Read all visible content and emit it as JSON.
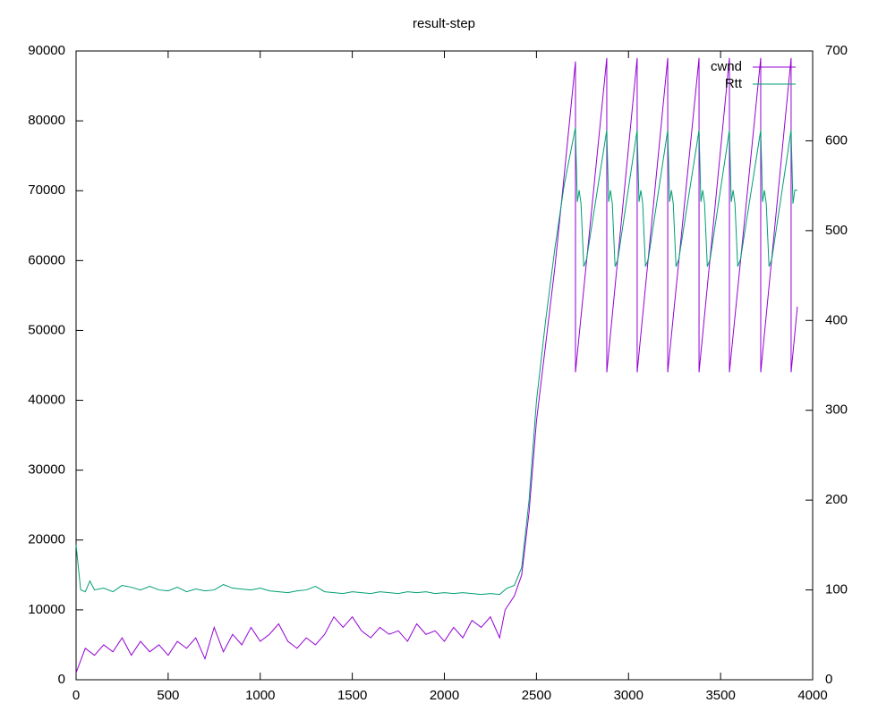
{
  "chart_data": {
    "type": "line",
    "title": "result-step",
    "xlim": [
      0,
      4000
    ],
    "xticks": [
      0,
      500,
      1000,
      1500,
      2000,
      2500,
      3000,
      3500,
      4000
    ],
    "ylim": [
      0,
      90000
    ],
    "yticks": [
      0,
      10000,
      20000,
      30000,
      40000,
      50000,
      60000,
      70000,
      80000,
      90000
    ],
    "y2lim": [
      0,
      700
    ],
    "y2ticks": [
      0,
      100,
      200,
      300,
      400,
      500,
      600,
      700
    ],
    "grid": false,
    "legend": "top-right",
    "series": [
      {
        "name": "cwnd",
        "color": "#9400d3",
        "x": [
          0,
          50,
          100,
          150,
          200,
          250,
          300,
          350,
          400,
          450,
          500,
          550,
          600,
          650,
          700,
          750,
          800,
          850,
          900,
          950,
          1000,
          1050,
          1100,
          1150,
          1200,
          1250,
          1300,
          1350,
          1400,
          1450,
          1500,
          1550,
          1600,
          1650,
          1700,
          1750,
          1800,
          1850,
          1900,
          1950,
          2000,
          2050,
          2100,
          2150,
          2200,
          2250,
          2300,
          2330,
          2380,
          2420,
          2460,
          2500,
          2550,
          2600,
          2650,
          2712,
          2712,
          2882,
          2882,
          3047,
          3047,
          3213,
          3213,
          3383,
          3383,
          3548,
          3548,
          3718,
          3718,
          3883,
          3883,
          3917
        ],
        "values": [
          1000,
          4500,
          3500,
          5000,
          4000,
          6000,
          3500,
          5500,
          4000,
          5000,
          3500,
          5500,
          4500,
          6000,
          3000,
          7500,
          4000,
          6500,
          5000,
          7500,
          5500,
          6500,
          8000,
          5500,
          4500,
          6000,
          5000,
          6500,
          9000,
          7500,
          9000,
          7000,
          6000,
          7500,
          6500,
          7000,
          5500,
          8000,
          6500,
          7000,
          5500,
          7500,
          6000,
          8500,
          7500,
          9000,
          6000,
          10000,
          12000,
          15000,
          24000,
          37000,
          48000,
          59000,
          72000,
          88500,
          44000,
          89000,
          44000,
          89000,
          44000,
          89000,
          44000,
          89000,
          44000,
          89000,
          44000,
          89000,
          44000,
          89000,
          44000,
          53400
        ]
      },
      {
        "name": "Rtt",
        "color": "#009e73",
        "axis": "y2",
        "x": [
          0,
          25,
          50,
          75,
          100,
          150,
          200,
          250,
          300,
          350,
          400,
          450,
          500,
          550,
          600,
          650,
          700,
          750,
          800,
          850,
          900,
          950,
          1000,
          1050,
          1100,
          1150,
          1200,
          1250,
          1300,
          1350,
          1400,
          1450,
          1500,
          1550,
          1600,
          1650,
          1700,
          1750,
          1800,
          1850,
          1900,
          1950,
          2000,
          2050,
          2100,
          2150,
          2200,
          2250,
          2300,
          2340,
          2380,
          2420,
          2460,
          2500,
          2550,
          2600,
          2650,
          2712,
          2715,
          2722,
          2732,
          2742,
          2757,
          2772,
          2882,
          2885,
          2892,
          2902,
          2912,
          2927,
          2942,
          3047,
          3050,
          3057,
          3067,
          3077,
          3092,
          3107,
          3213,
          3216,
          3223,
          3233,
          3243,
          3258,
          3273,
          3383,
          3386,
          3393,
          3403,
          3413,
          3428,
          3443,
          3548,
          3551,
          3558,
          3568,
          3578,
          3593,
          3608,
          3718,
          3721,
          3728,
          3738,
          3748,
          3763,
          3778,
          3883,
          3886,
          3893,
          3903,
          3917
        ],
        "values": [
          150,
          100,
          98,
          110,
          100,
          102,
          98,
          105,
          103,
          100,
          104,
          100,
          99,
          103,
          98,
          101,
          99,
          100,
          106,
          102,
          101,
          100,
          102,
          99,
          98,
          97,
          99,
          100,
          104,
          98,
          97,
          96,
          98,
          97,
          96,
          98,
          97,
          96,
          98,
          97,
          98,
          96,
          97,
          96,
          97,
          96,
          95,
          96,
          95,
          102,
          105,
          125,
          200,
          310,
          400,
          480,
          550,
          615,
          588,
          532,
          545,
          530,
          460,
          468,
          612,
          588,
          532,
          545,
          530,
          460,
          468,
          612,
          588,
          532,
          545,
          530,
          460,
          468,
          612,
          588,
          532,
          545,
          530,
          460,
          468,
          612,
          588,
          532,
          545,
          530,
          460,
          468,
          612,
          588,
          532,
          545,
          530,
          460,
          468,
          612,
          588,
          532,
          545,
          530,
          460,
          468,
          612,
          588,
          530,
          545,
          545
        ]
      }
    ]
  }
}
